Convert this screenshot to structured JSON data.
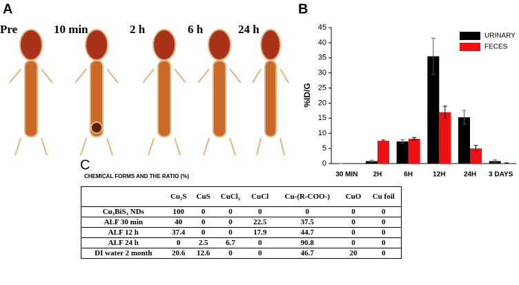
{
  "panels": {
    "a": "A",
    "b": "B",
    "c": "C"
  },
  "images": {
    "labels": [
      "Pre",
      "10 min",
      "2 h",
      "6 h",
      "24 h"
    ]
  },
  "chart_data": {
    "type": "bar",
    "ylabel": "%ID/G",
    "categories": [
      "30 MIN",
      "2H",
      "6H",
      "12H",
      "24H",
      "3 DAYS"
    ],
    "series": [
      {
        "name": "URINARY",
        "color": "#000000",
        "values": [
          0,
          0.8,
          7.3,
          35.5,
          15.3,
          0.8
        ],
        "errors": [
          0,
          0.3,
          0.6,
          6,
          2.3,
          0.4
        ]
      },
      {
        "name": "FECES",
        "color": "#ee1111",
        "values": [
          0,
          7.5,
          8.2,
          17,
          5,
          0.1
        ],
        "errors": [
          0,
          0.3,
          0.4,
          2,
          1,
          0.1
        ]
      }
    ],
    "ylim": [
      0,
      45
    ],
    "yticks": [
      0,
      5,
      10,
      15,
      20,
      25,
      30,
      35,
      40,
      45
    ],
    "legend": "upper right"
  },
  "table": {
    "title": "CHEMICAL FORMS AND THE RATIO (%)",
    "header": [
      "",
      "Cu₂S",
      "CuS",
      "CuCl₂",
      "CuCl",
      "Cu-(R-COO-)",
      "CuO",
      "Cu foil"
    ],
    "rows": [
      [
        "Cu₃BiS₃ NDs",
        "100",
        "0",
        "0",
        "0",
        "0",
        "0",
        "0"
      ],
      [
        "ALF 30 min",
        "40",
        "0",
        "0",
        "22.5",
        "37.5",
        "0",
        "0"
      ],
      [
        "ALF 12 h",
        "37.4",
        "0",
        "0",
        "17.9",
        "44.7",
        "0",
        "0"
      ],
      [
        "ALF 24 h",
        "0",
        "2.5",
        "6.7",
        "0",
        "90.8",
        "0",
        "0"
      ],
      [
        "DI water 2 month",
        "20.6",
        "12.6",
        "0",
        "0",
        "46.7",
        "20",
        "0"
      ]
    ]
  }
}
